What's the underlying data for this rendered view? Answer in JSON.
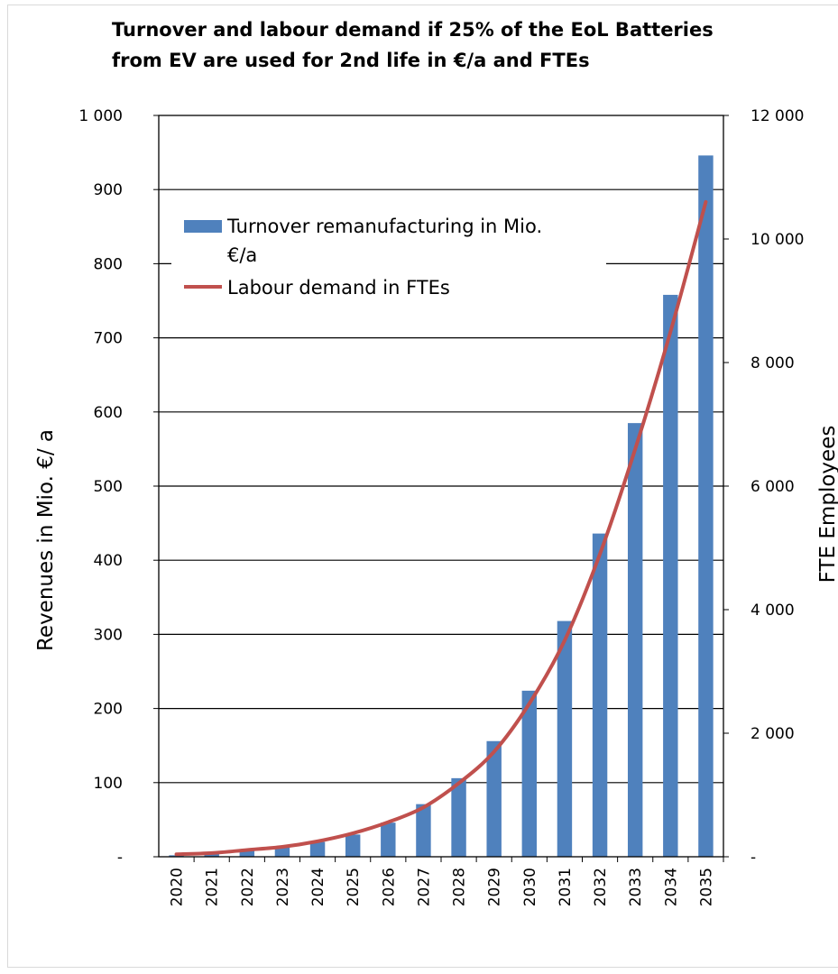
{
  "chart_data": {
    "type": "bar",
    "title": "Turnover and labour demand if 25% of the EoL Batteries\nfrom EV are used for 2nd life in €/a and FTEs",
    "categories": [
      "2020",
      "2021",
      "2022",
      "2023",
      "2024",
      "2025",
      "2026",
      "2027",
      "2028",
      "2029",
      "2030",
      "2031",
      "2032",
      "2033",
      "2034",
      "2035"
    ],
    "series": [
      {
        "name": "Turnover remanufacturing in Mio. €/a",
        "type": "bar",
        "axis": "left",
        "color": "#4f81bd",
        "values": [
          2,
          5,
          9,
          13,
          20,
          30,
          46,
          71,
          106,
          156,
          224,
          318,
          436,
          585,
          758,
          946
        ]
      },
      {
        "name": "Labour demand in FTEs",
        "type": "line",
        "axis": "right",
        "color": "#c0504d",
        "values": [
          40,
          60,
          110,
          160,
          250,
          380,
          560,
          800,
          1190,
          1700,
          2480,
          3500,
          4900,
          6600,
          8500,
          10600
        ]
      }
    ],
    "ylabel": "Revenues in Mio. €/ a",
    "y2label": "FTE Employees",
    "ylim": [
      0,
      1000
    ],
    "y2lim": [
      0,
      12000
    ],
    "yticks": [
      "-",
      "100",
      "200",
      "300",
      "400",
      "500",
      "600",
      "700",
      "800",
      "900",
      "1 000"
    ],
    "y2ticks": [
      "-",
      "2 000",
      "4 000",
      "6 000",
      "8 000",
      "10 000",
      "12 000"
    ],
    "grid": true,
    "legend_position": "top-left inside plot"
  }
}
